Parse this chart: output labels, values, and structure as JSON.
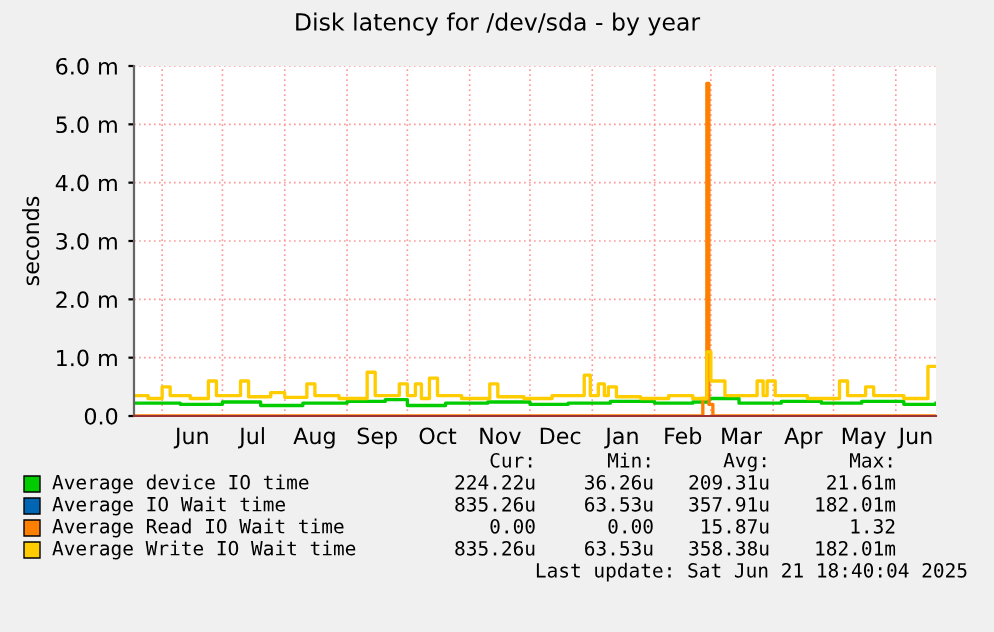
{
  "chart_data": {
    "type": "step",
    "title": "Disk latency for /dev/sda - by year",
    "ylabel": "seconds",
    "xlim": [
      "2024-05-18",
      "2025-06-21"
    ],
    "ylim": [
      0,
      6
    ],
    "yticks": [
      {
        "value": 0,
        "label": "0.0"
      },
      {
        "value": 1,
        "label": "1.0 m"
      },
      {
        "value": 2,
        "label": "2.0 m"
      },
      {
        "value": 3,
        "label": "3.0 m"
      },
      {
        "value": 4,
        "label": "4.0 m"
      },
      {
        "value": 5,
        "label": "5.0 m"
      },
      {
        "value": 6,
        "label": "6.0 m"
      }
    ],
    "xticks": [
      {
        "value": "2024-06-01",
        "label": null
      },
      {
        "value": "2024-06-16",
        "label": "Jun"
      },
      {
        "value": "2024-07-01",
        "label": null
      },
      {
        "value": "2024-07-16",
        "label": "Jul"
      },
      {
        "value": "2024-08-01",
        "label": null
      },
      {
        "value": "2024-08-16",
        "label": "Aug"
      },
      {
        "value": "2024-09-01",
        "label": null
      },
      {
        "value": "2024-09-16",
        "label": "Sep"
      },
      {
        "value": "2024-10-01",
        "label": null
      },
      {
        "value": "2024-10-16",
        "label": "Oct"
      },
      {
        "value": "2024-11-01",
        "label": null
      },
      {
        "value": "2024-11-16",
        "label": "Nov"
      },
      {
        "value": "2024-12-01",
        "label": null
      },
      {
        "value": "2024-12-16",
        "label": "Dec"
      },
      {
        "value": "2025-01-01",
        "label": null
      },
      {
        "value": "2025-01-16",
        "label": "Jan"
      },
      {
        "value": "2025-02-01",
        "label": null
      },
      {
        "value": "2025-02-15",
        "label": "Feb"
      },
      {
        "value": "2025-03-01",
        "label": null
      },
      {
        "value": "2025-03-16",
        "label": "Mar"
      },
      {
        "value": "2025-04-01",
        "label": null
      },
      {
        "value": "2025-04-16",
        "label": "Apr"
      },
      {
        "value": "2025-05-01",
        "label": null
      },
      {
        "value": "2025-05-16",
        "label": "May"
      },
      {
        "value": "2025-06-01",
        "label": null
      },
      {
        "value": "2025-06-11",
        "label": "Jun"
      }
    ],
    "grid": true,
    "legend": "bottom",
    "series": [
      {
        "name": "Average device IO time",
        "color": "#00cc00",
        "x": [
          "2024-05-18",
          "2024-06-10",
          "2024-07-01",
          "2024-07-20",
          "2024-08-10",
          "2024-09-01",
          "2024-09-20",
          "2024-10-01",
          "2024-10-20",
          "2024-11-10",
          "2024-12-01",
          "2024-12-20",
          "2025-01-10",
          "2025-02-01",
          "2025-02-20",
          "2025-02-28",
          "2025-03-15",
          "2025-04-05",
          "2025-04-25",
          "2025-05-15",
          "2025-06-05",
          "2025-06-21"
        ],
        "values": [
          0.22,
          0.2,
          0.24,
          0.18,
          0.22,
          0.25,
          0.28,
          0.18,
          0.22,
          0.24,
          0.2,
          0.22,
          0.25,
          0.22,
          0.24,
          0.3,
          0.22,
          0.25,
          0.22,
          0.25,
          0.2,
          0.22
        ]
      },
      {
        "name": "Average IO Wait time",
        "color": "#0066b3"
      },
      {
        "name": "Average Read IO Wait time",
        "color": "#ff8000",
        "x": [
          "2024-05-18",
          "2025-02-25",
          "2025-02-27",
          "2025-02-28",
          "2025-03-02",
          "2025-06-21"
        ],
        "values": [
          0,
          0.3,
          5.7,
          0.2,
          0,
          0
        ]
      },
      {
        "name": "Average Write IO Wait time",
        "color": "#ffcc00",
        "x": [
          "2024-05-18",
          "2024-05-25",
          "2024-06-01",
          "2024-06-05",
          "2024-06-15",
          "2024-06-24",
          "2024-06-28",
          "2024-07-10",
          "2024-07-14",
          "2024-07-25",
          "2024-08-01",
          "2024-08-12",
          "2024-08-16",
          "2024-08-28",
          "2024-09-11",
          "2024-09-15",
          "2024-09-27",
          "2024-10-01",
          "2024-10-05",
          "2024-10-08",
          "2024-10-12",
          "2024-10-16",
          "2024-10-28",
          "2024-11-11",
          "2024-11-15",
          "2024-11-28",
          "2024-12-12",
          "2024-12-28",
          "2024-12-31",
          "2025-01-04",
          "2025-01-07",
          "2025-01-09",
          "2025-01-13",
          "2025-01-25",
          "2025-02-08",
          "2025-02-20",
          "2025-02-27",
          "2025-03-01",
          "2025-03-04",
          "2025-03-08",
          "2025-03-24",
          "2025-03-27",
          "2025-03-29",
          "2025-04-02",
          "2025-04-18",
          "2025-05-04",
          "2025-05-08",
          "2025-05-17",
          "2025-05-21",
          "2025-06-05",
          "2025-06-17",
          "2025-06-21"
        ],
        "values": [
          0.35,
          0.3,
          0.5,
          0.35,
          0.3,
          0.6,
          0.35,
          0.6,
          0.33,
          0.4,
          0.32,
          0.55,
          0.35,
          0.3,
          0.75,
          0.35,
          0.55,
          0.35,
          0.55,
          0.3,
          0.65,
          0.35,
          0.3,
          0.55,
          0.33,
          0.3,
          0.35,
          0.7,
          0.35,
          0.55,
          0.35,
          0.5,
          0.33,
          0.3,
          0.35,
          0.3,
          1.1,
          0.6,
          0.6,
          0.35,
          0.6,
          0.35,
          0.6,
          0.35,
          0.3,
          0.6,
          0.35,
          0.5,
          0.35,
          0.3,
          0.85,
          0.85
        ]
      }
    ],
    "annotations": [
      "Cur:",
      "Min:",
      "Avg:",
      "Max:",
      "224.22u",
      "36.26u",
      "209.31u",
      "21.61m",
      "835.26u",
      "63.53u",
      "357.91u",
      "182.01m",
      "0.00",
      "0.00",
      "15.87u",
      "1.32",
      "835.26u",
      "63.53u",
      "358.38u",
      "182.01m",
      "Last update: Sat Jun 21 18:40:04 2025"
    ]
  }
}
